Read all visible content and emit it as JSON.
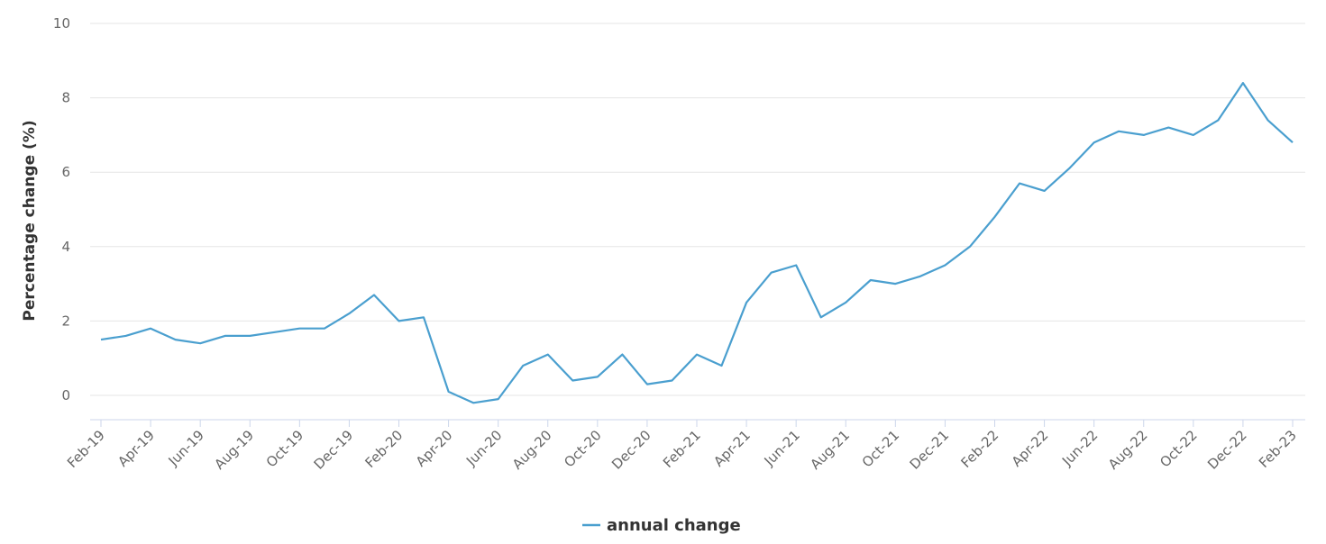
{
  "chart_data": {
    "type": "line",
    "title": "",
    "xlabel": "",
    "ylabel": "Percentage change (%)",
    "ylim": [
      -0.6,
      10
    ],
    "yticks": [
      "0",
      "2",
      "4",
      "6",
      "8",
      "10"
    ],
    "ytick_values": [
      0,
      2,
      4,
      6,
      8,
      10
    ],
    "grid": true,
    "legend_position": "bottom-center",
    "x": [
      "Feb-19",
      "Mar-19",
      "Apr-19",
      "May-19",
      "Jun-19",
      "Jul-19",
      "Aug-19",
      "Sep-19",
      "Oct-19",
      "Nov-19",
      "Dec-19",
      "Jan-20",
      "Feb-20",
      "Mar-20",
      "Apr-20",
      "May-20",
      "Jun-20",
      "Jul-20",
      "Aug-20",
      "Sep-20",
      "Oct-20",
      "Nov-20",
      "Dec-20",
      "Jan-21",
      "Feb-21",
      "Mar-21",
      "Apr-21",
      "May-21",
      "Jun-21",
      "Jul-21",
      "Aug-21",
      "Sep-21",
      "Oct-21",
      "Nov-21",
      "Dec-21",
      "Jan-22",
      "Feb-22",
      "Mar-22",
      "Apr-22",
      "May-22",
      "Jun-22",
      "Jul-22",
      "Aug-22",
      "Sep-22",
      "Oct-22",
      "Nov-22",
      "Dec-22",
      "Jan-23",
      "Feb-23"
    ],
    "xticks": [
      "Feb-19",
      "Apr-19",
      "Jun-19",
      "Aug-19",
      "Oct-19",
      "Dec-19",
      "Feb-20",
      "Apr-20",
      "Jun-20",
      "Aug-20",
      "Oct-20",
      "Dec-20",
      "Feb-21",
      "Apr-21",
      "Jun-21",
      "Aug-21",
      "Oct-21",
      "Dec-21",
      "Feb-22",
      "Apr-22",
      "Jun-22",
      "Aug-22",
      "Oct-22",
      "Dec-22",
      "Feb-23"
    ],
    "series": [
      {
        "name": "annual change",
        "color": "#4a9fcf",
        "values": [
          1.5,
          1.6,
          1.8,
          1.5,
          1.4,
          1.6,
          1.6,
          1.7,
          1.8,
          1.8,
          2.2,
          2.7,
          2.0,
          2.1,
          0.1,
          -0.2,
          -0.1,
          0.8,
          1.1,
          0.4,
          0.5,
          1.1,
          0.3,
          0.4,
          1.1,
          0.8,
          2.5,
          3.3,
          3.5,
          2.1,
          2.5,
          3.1,
          3.0,
          3.2,
          3.5,
          4.0,
          4.8,
          5.7,
          5.5,
          6.1,
          6.8,
          7.1,
          7.0,
          7.2,
          7.0,
          7.4,
          8.4,
          7.4,
          6.8
        ]
      }
    ]
  }
}
